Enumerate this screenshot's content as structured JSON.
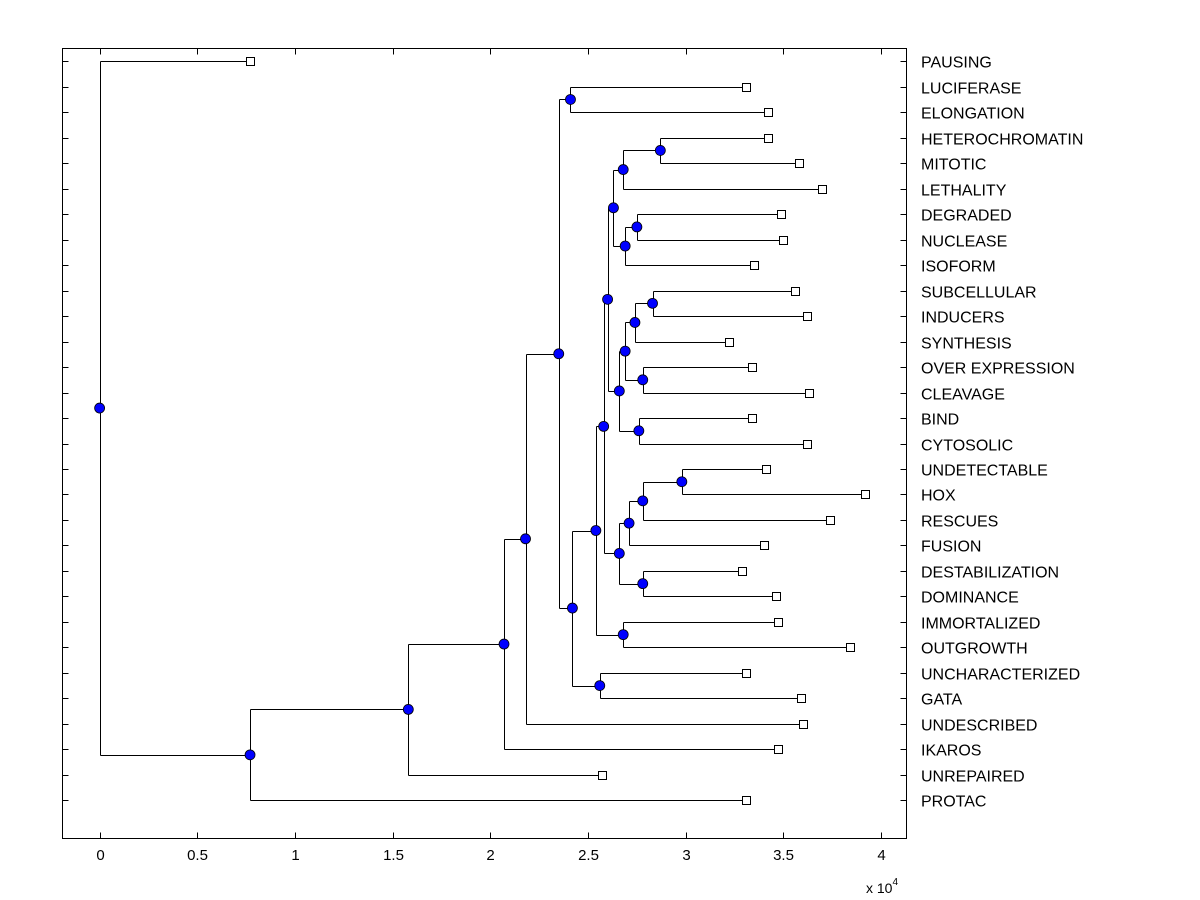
{
  "chart_data": {
    "type": "dendrogram",
    "title": "",
    "xlabel": "",
    "ylabel": "",
    "x_multiplier": "x 10",
    "x_multiplier_exponent": "4",
    "xlim": [
      -0.19,
      4.13
    ],
    "ylim": [
      0.5,
      31.5
    ],
    "x_ticks": [
      0,
      0.5,
      1,
      1.5,
      2,
      2.5,
      3,
      3.5,
      4
    ],
    "x_tick_labels": [
      "0",
      "0.5",
      "1",
      "1.5",
      "2",
      "2.5",
      "3",
      "3.5",
      "4"
    ],
    "colors": {
      "node": "#0000ff",
      "leaf": "#ffffff",
      "line": "#000000"
    },
    "leaves": [
      {
        "label": "PAUSING",
        "x": 0.77
      },
      {
        "label": "LUCIFERASE",
        "x": 3.31
      },
      {
        "label": "ELONGATION",
        "x": 3.42
      },
      {
        "label": "HETEROCHROMATIN",
        "x": 3.42
      },
      {
        "label": "MITOTIC",
        "x": 3.58
      },
      {
        "label": "LETHALITY",
        "x": 3.7
      },
      {
        "label": "DEGRADED",
        "x": 3.49
      },
      {
        "label": "NUCLEASE",
        "x": 3.5
      },
      {
        "label": "ISOFORM",
        "x": 3.35
      },
      {
        "label": "SUBCELLULAR",
        "x": 3.56
      },
      {
        "label": "INDUCERS",
        "x": 3.62
      },
      {
        "label": "SYNTHESIS",
        "x": 3.22
      },
      {
        "label": "OVER EXPRESSION",
        "x": 3.34
      },
      {
        "label": "CLEAVAGE",
        "x": 3.63
      },
      {
        "label": "BIND",
        "x": 3.34
      },
      {
        "label": "CYTOSOLIC",
        "x": 3.62
      },
      {
        "label": "UNDETECTABLE",
        "x": 3.41
      },
      {
        "label": "HOX",
        "x": 3.92
      },
      {
        "label": "RESCUES",
        "x": 3.74
      },
      {
        "label": "FUSION",
        "x": 3.4
      },
      {
        "label": "DESTABILIZATION",
        "x": 3.29
      },
      {
        "label": "DOMINANCE",
        "x": 3.46
      },
      {
        "label": "IMMORTALIZED",
        "x": 3.47
      },
      {
        "label": "OUTGROWTH",
        "x": 3.84
      },
      {
        "label": "UNCHARACTERIZED",
        "x": 3.31
      },
      {
        "label": "GATA",
        "x": 3.59
      },
      {
        "label": "UNDESCRIBED",
        "x": 3.6
      },
      {
        "label": "IKAROS",
        "x": 3.47
      },
      {
        "label": "UNREPAIRED",
        "x": 2.57
      },
      {
        "label": "PROTAC",
        "x": 3.31
      }
    ],
    "internal_nodes": [
      {
        "id": "n1",
        "x": 0.0,
        "children": [
          "L0",
          "n2"
        ]
      },
      {
        "id": "n2",
        "x": 0.77,
        "children": [
          "n3",
          "L29"
        ]
      },
      {
        "id": "n3",
        "x": 1.58,
        "children": [
          "n4",
          "L28"
        ]
      },
      {
        "id": "n4",
        "x": 2.07,
        "children": [
          "n5",
          "L27"
        ]
      },
      {
        "id": "n5",
        "x": 2.18,
        "children": [
          "n6",
          "L26"
        ]
      },
      {
        "id": "n6",
        "x": 2.35,
        "children": [
          "n7",
          "n13"
        ]
      },
      {
        "id": "n7",
        "x": 2.41,
        "children": [
          "L1",
          "L2"
        ]
      },
      {
        "id": "n13",
        "x": 2.42,
        "children": [
          "n14",
          "n25"
        ]
      },
      {
        "id": "n14",
        "x": 2.54,
        "children": [
          "n15",
          "n24"
        ]
      },
      {
        "id": "n15",
        "x": 2.58,
        "children": [
          "n16",
          "n20"
        ]
      },
      {
        "id": "n16",
        "x": 2.6,
        "children": [
          "n8",
          "n17"
        ]
      },
      {
        "id": "n8",
        "x": 2.63,
        "children": [
          "n9",
          "n11"
        ]
      },
      {
        "id": "n9",
        "x": 2.68,
        "children": [
          "n10",
          "L5"
        ]
      },
      {
        "id": "n10",
        "x": 2.87,
        "children": [
          "L3",
          "L4"
        ]
      },
      {
        "id": "n11",
        "x": 2.69,
        "children": [
          "n12",
          "L8"
        ]
      },
      {
        "id": "n12",
        "x": 2.75,
        "children": [
          "L6",
          "L7"
        ]
      },
      {
        "id": "n17",
        "x": 2.66,
        "children": [
          "n18",
          "n19"
        ]
      },
      {
        "id": "n18",
        "x": 2.69,
        "children": [
          "n22",
          "n23"
        ]
      },
      {
        "id": "n22",
        "x": 2.74,
        "children": [
          "n26",
          "L11"
        ]
      },
      {
        "id": "n26",
        "x": 2.83,
        "children": [
          "L9",
          "L10"
        ]
      },
      {
        "id": "n23",
        "x": 2.78,
        "children": [
          "L12",
          "L13"
        ]
      },
      {
        "id": "n19",
        "x": 2.76,
        "children": [
          "L14",
          "L15"
        ]
      },
      {
        "id": "n20",
        "x": 2.66,
        "children": [
          "n21",
          "n27"
        ]
      },
      {
        "id": "n21",
        "x": 2.71,
        "children": [
          "n28",
          "L19"
        ]
      },
      {
        "id": "n28",
        "x": 2.78,
        "children": [
          "n29",
          "L18"
        ]
      },
      {
        "id": "n29",
        "x": 2.98,
        "children": [
          "L16",
          "L17"
        ]
      },
      {
        "id": "n27",
        "x": 2.78,
        "children": [
          "L20",
          "L21"
        ]
      },
      {
        "id": "n24",
        "x": 2.68,
        "children": [
          "L22",
          "L23"
        ]
      },
      {
        "id": "n25",
        "x": 2.56,
        "children": [
          "L24",
          "L25"
        ]
      }
    ]
  }
}
